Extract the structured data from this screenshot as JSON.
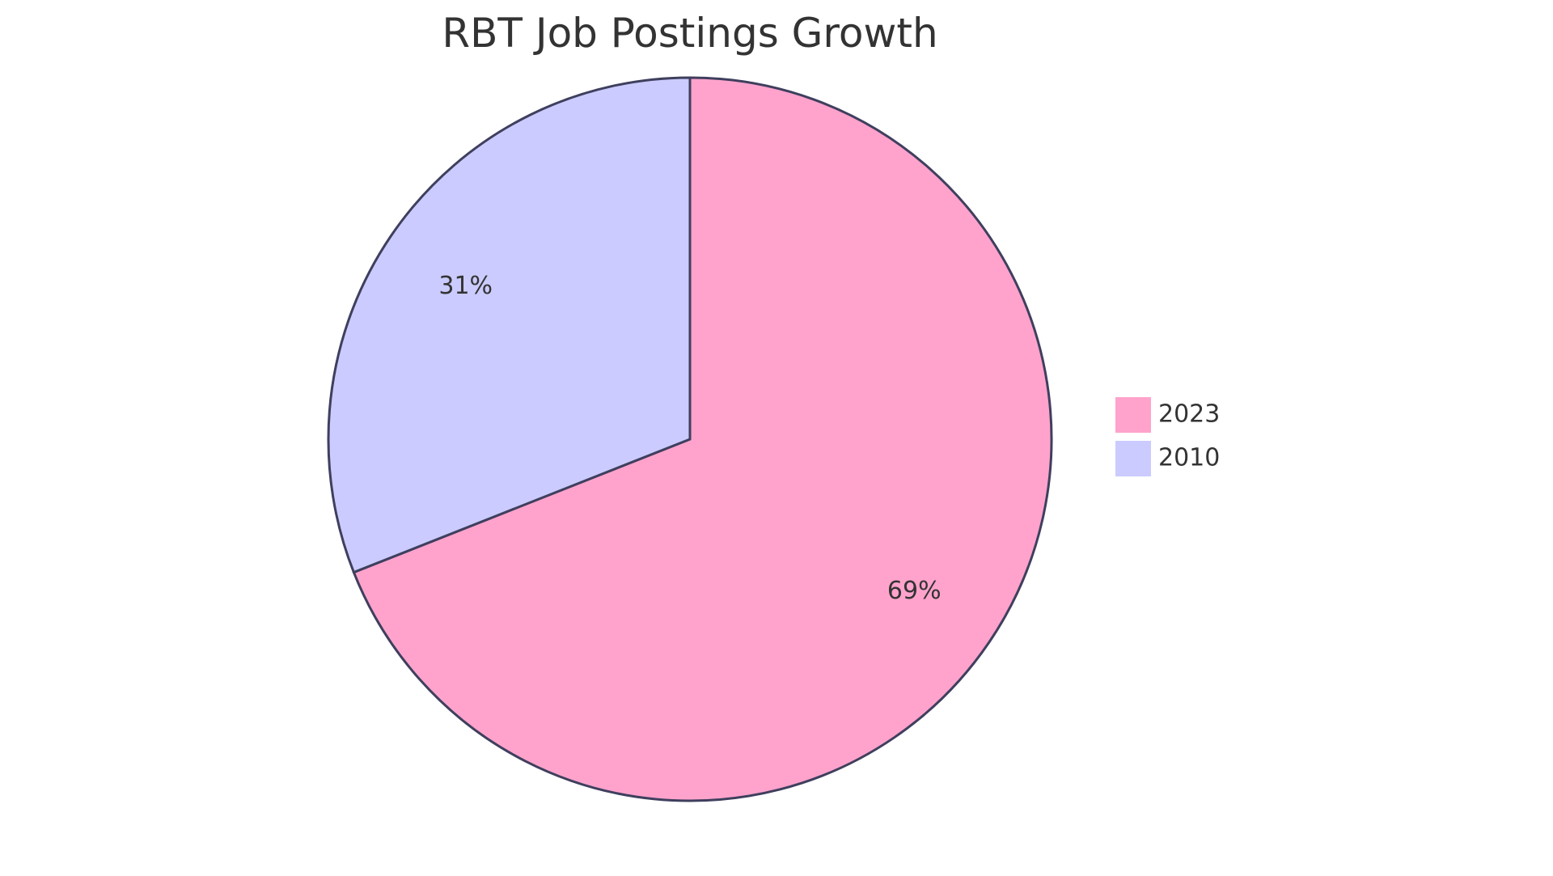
{
  "chart_data": {
    "type": "pie",
    "title": "RBT Job Postings Growth",
    "categories": [
      "2023",
      "2010"
    ],
    "values": [
      69,
      31
    ],
    "labels": [
      "69%",
      "31%"
    ],
    "colors": [
      "#FFA3CC",
      "#CBCBFF"
    ],
    "outline_color": "#3F3F5E",
    "legend_position": "right"
  }
}
